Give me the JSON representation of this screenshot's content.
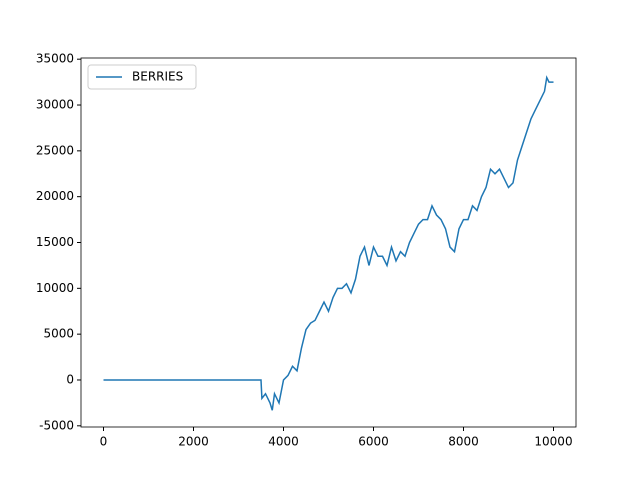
{
  "chart_data": {
    "type": "line",
    "x": [
      0,
      3500,
      3520,
      3600,
      3700,
      3750,
      3800,
      3900,
      4000,
      4100,
      4200,
      4300,
      4400,
      4500,
      4600,
      4700,
      4800,
      4900,
      5000,
      5100,
      5200,
      5300,
      5400,
      5500,
      5600,
      5700,
      5800,
      5900,
      6000,
      6100,
      6200,
      6300,
      6400,
      6500,
      6600,
      6700,
      6800,
      6900,
      7000,
      7100,
      7200,
      7300,
      7400,
      7500,
      7600,
      7700,
      7800,
      7900,
      8000,
      8100,
      8200,
      8300,
      8400,
      8500,
      8600,
      8700,
      8800,
      8900,
      9000,
      9100,
      9200,
      9300,
      9400,
      9500,
      9600,
      9700,
      9800,
      9850,
      9900,
      10000
    ],
    "series": [
      {
        "name": "BERRIES",
        "color": "#1f77b4",
        "values": [
          0,
          0,
          -2000,
          -1500,
          -2500,
          -3300,
          -1500,
          -2500,
          0,
          500,
          1500,
          1000,
          3500,
          5500,
          6200,
          6500,
          7500,
          8500,
          7500,
          9000,
          10000,
          10000,
          10500,
          9500,
          11000,
          13500,
          14500,
          12500,
          14500,
          13500,
          13500,
          12500,
          14500,
          13000,
          14000,
          13500,
          15000,
          16000,
          17000,
          17500,
          17500,
          19000,
          18000,
          17500,
          16500,
          14500,
          14000,
          16500,
          17500,
          17500,
          19000,
          18500,
          20000,
          21000,
          23000,
          22500,
          23000,
          22000,
          21000,
          21500,
          24000,
          25500,
          27000,
          28500,
          29500,
          30500,
          31500,
          33000,
          32500,
          32500
        ]
      }
    ],
    "xlim": [
      -500,
      10500
    ],
    "xticks": [
      0,
      2000,
      4000,
      6000,
      8000,
      10000
    ],
    "ylim": [
      -5130,
      35130
    ],
    "yticks": [
      -5000,
      0,
      5000,
      10000,
      15000,
      20000,
      25000,
      30000,
      35000
    ],
    "legend": "upper left"
  }
}
